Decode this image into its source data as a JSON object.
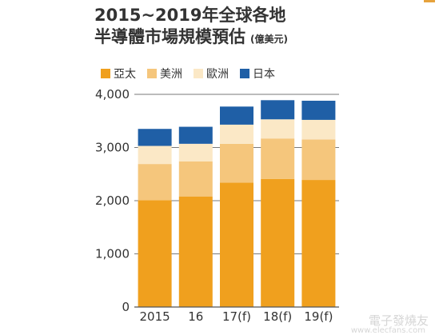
{
  "header": {
    "title_line1": "2015~2019年全球各地",
    "title_line2": "半導體市場規模預估",
    "unit": "(億美元)"
  },
  "watermark": {
    "text": "電子發燒友",
    "sub": "www.elecfans.com"
  },
  "colors": {
    "corner_mark": "#e6a23c"
  },
  "chart_data": {
    "type": "bar",
    "stacked": true,
    "title": "2015~2019年全球各地 半導體市場規模預估",
    "ylabel": "(億美元)",
    "categories": [
      "2015",
      "16",
      "17(f)",
      "18(f)",
      "19(f)"
    ],
    "series": [
      {
        "name": "亞太",
        "color": "#f0a01e",
        "values": [
          2010,
          2080,
          2340,
          2410,
          2390
        ]
      },
      {
        "name": "美洲",
        "color": "#f5c67c",
        "values": [
          680,
          660,
          730,
          760,
          760
        ]
      },
      {
        "name": "歐洲",
        "color": "#fbe8c6",
        "values": [
          340,
          330,
          360,
          360,
          370
        ]
      },
      {
        "name": "日本",
        "color": "#1f5fa6",
        "values": [
          320,
          320,
          340,
          360,
          360
        ]
      }
    ],
    "ylim": [
      0,
      4000
    ],
    "yticks": [
      0,
      1000,
      2000,
      3000,
      4000
    ],
    "ytick_labels": [
      "0",
      "1,000",
      "2,000",
      "3,000",
      "4,000"
    ],
    "grid": true,
    "legend": "top"
  }
}
